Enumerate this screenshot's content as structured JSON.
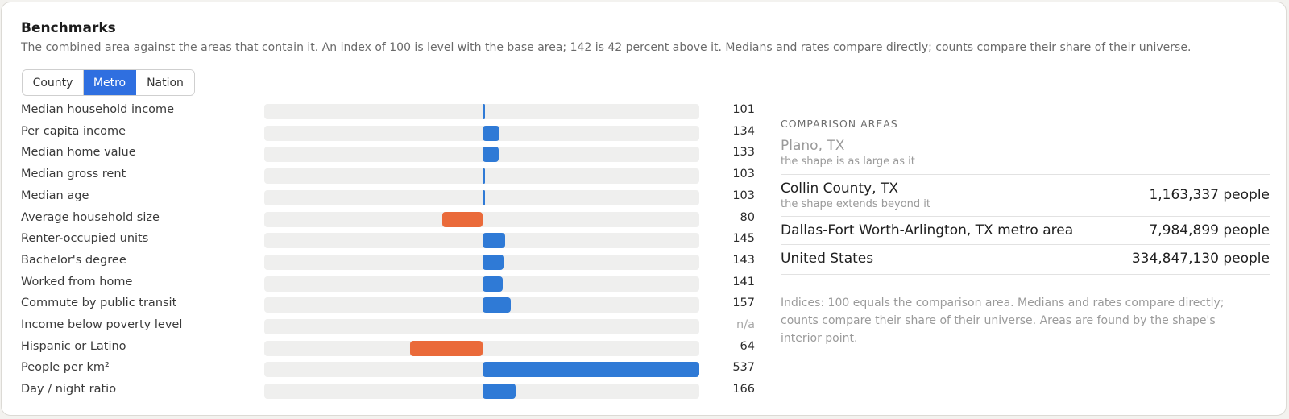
{
  "header": {
    "title": "Benchmarks",
    "subtitle": "The combined area against the areas that contain it. An index of 100 is level with the base area; 142 is 42 percent above it. Medians and rates compare directly; counts compare their share of their universe."
  },
  "tabs": [
    {
      "label": "County",
      "active": false
    },
    {
      "label": "Metro",
      "active": true
    },
    {
      "label": "Nation",
      "active": false
    }
  ],
  "colors": {
    "accent": "#2f6fe0",
    "above": "#2f7ad6",
    "below": "#ea6a3a"
  },
  "metrics": [
    {
      "label": "Median household income",
      "index": 101,
      "display": "101"
    },
    {
      "label": "Per capita income",
      "index": 134,
      "display": "134"
    },
    {
      "label": "Median home value",
      "index": 133,
      "display": "133"
    },
    {
      "label": "Median gross rent",
      "index": 103,
      "display": "103"
    },
    {
      "label": "Median age",
      "index": 103,
      "display": "103"
    },
    {
      "label": "Average household size",
      "index": 80,
      "display": "80"
    },
    {
      "label": "Renter-occupied units",
      "index": 145,
      "display": "145"
    },
    {
      "label": "Bachelor's degree",
      "index": 143,
      "display": "143"
    },
    {
      "label": "Worked from home",
      "index": 141,
      "display": "141"
    },
    {
      "label": "Commute by public transit",
      "index": 157,
      "display": "157"
    },
    {
      "label": "Income below poverty level",
      "index": null,
      "display": "n/a"
    },
    {
      "label": "Hispanic or Latino",
      "index": 64,
      "display": "64"
    },
    {
      "label": "People per km²",
      "index": 537,
      "display": "537"
    },
    {
      "label": "Day / night ratio",
      "index": 166,
      "display": "166"
    }
  ],
  "comparison": {
    "heading": "COMPARISON AREAS",
    "areas": [
      {
        "name": "Plano, TX",
        "note": "the shape is as large as it",
        "population": "",
        "muted": true
      },
      {
        "name": "Collin County, TX",
        "note": "the shape extends beyond it",
        "population": "1,163,337 people",
        "muted": false
      },
      {
        "name": "Dallas-Fort Worth-Arlington, TX metro area",
        "note": "",
        "population": "7,984,899 people",
        "muted": false
      },
      {
        "name": "United States",
        "note": "",
        "population": "334,847,130 people",
        "muted": false
      }
    ],
    "footer": "Indices: 100 equals the comparison area. Medians and rates compare directly; counts compare their share of their universe. Areas are found by the shape's interior point."
  }
}
